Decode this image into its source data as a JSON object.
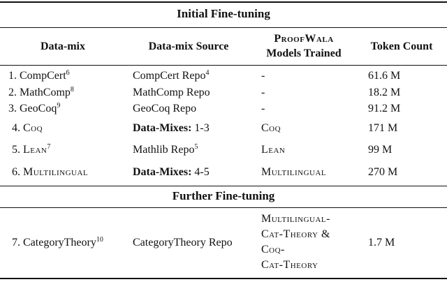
{
  "sections": {
    "initial": "Initial Fine-tuning",
    "further": "Further Fine-tuning"
  },
  "headers": {
    "datamix": "Data-mix",
    "source": "Data-mix Source",
    "models_line1": "ProofWala",
    "models_line2": "Models Trained",
    "tokens": "Token Count"
  },
  "rows": [
    {
      "num": "1.",
      "name": "CompCert",
      "sup": "6",
      "source": "CompCert Repo",
      "source_sup": "4",
      "model": "-",
      "tokens": "61.6 M"
    },
    {
      "num": "2.",
      "name": "MathComp",
      "sup": "8",
      "source": "MathComp Repo",
      "model": "-",
      "tokens": "18.2 M"
    },
    {
      "num": "3.",
      "name": "GeoCoq",
      "sup": "9",
      "source": "GeoCoq Repo",
      "model": "-",
      "tokens": "91.2 M"
    },
    {
      "num": "4.",
      "name": "Coq",
      "source_bold": "Data-Mixes:",
      "source_rest": " 1-3",
      "model": "Coq",
      "tokens": "171 M"
    },
    {
      "num": "5.",
      "name": "Lean",
      "sup": "7",
      "source": "Mathlib Repo",
      "source_sup": "5",
      "model": "Lean",
      "tokens": "99 M"
    },
    {
      "num": "6.",
      "name": "Multilingual",
      "source_bold": "Data-Mixes:",
      "source_rest": " 4-5",
      "model": "Multilingual",
      "tokens": "270 M"
    },
    {
      "num": "7.",
      "name": "CategoryTheory",
      "sup": "10",
      "source": "CategoryTheory Repo",
      "model_lines": [
        "Multilingual-",
        "Cat-Theory &",
        "Coq-",
        "Cat-Theory"
      ],
      "tokens": "1.7 M"
    }
  ]
}
